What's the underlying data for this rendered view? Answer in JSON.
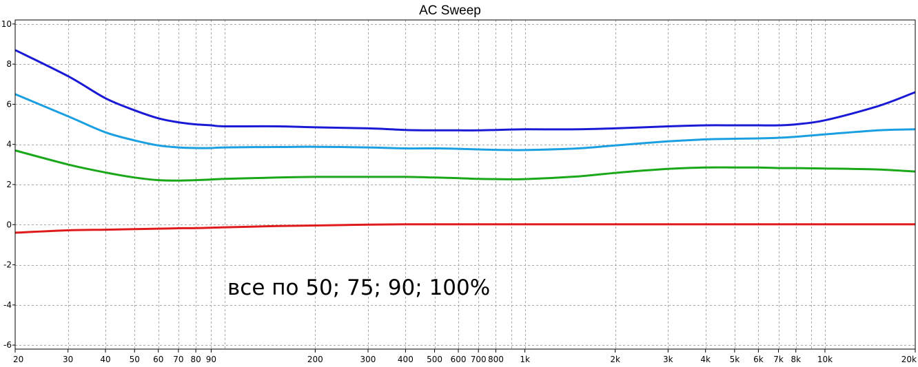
{
  "chart_data": {
    "type": "line",
    "title": "AC Sweep",
    "annotation": "все по 50; 75; 90; 100%",
    "x_scale": "log",
    "xlim": [
      20,
      20000
    ],
    "ylim": [
      -6.2,
      10.2
    ],
    "grid": true,
    "x_tick_labels": [
      {
        "value": 20,
        "label": "20"
      },
      {
        "value": 30,
        "label": "30"
      },
      {
        "value": 40,
        "label": "40"
      },
      {
        "value": 50,
        "label": "50"
      },
      {
        "value": 60,
        "label": "60"
      },
      {
        "value": 70,
        "label": "70"
      },
      {
        "value": 80,
        "label": "80"
      },
      {
        "value": 90,
        "label": "90"
      },
      {
        "value": 200,
        "label": "200"
      },
      {
        "value": 300,
        "label": "300"
      },
      {
        "value": 400,
        "label": "400"
      },
      {
        "value": 500,
        "label": "500"
      },
      {
        "value": 600,
        "label": "600"
      },
      {
        "value": 700,
        "label": "700"
      },
      {
        "value": 800,
        "label": "800"
      },
      {
        "value": 1000,
        "label": "1k"
      },
      {
        "value": 2000,
        "label": "2k"
      },
      {
        "value": 3000,
        "label": "3k"
      },
      {
        "value": 4000,
        "label": "4k"
      },
      {
        "value": 5000,
        "label": "5k"
      },
      {
        "value": 6000,
        "label": "6k"
      },
      {
        "value": 7000,
        "label": "7k"
      },
      {
        "value": 8000,
        "label": "8k"
      },
      {
        "value": 10000,
        "label": "10k"
      },
      {
        "value": 20000,
        "label": "20k"
      }
    ],
    "y_tick_labels": [
      {
        "value": 10,
        "label": "10"
      },
      {
        "value": 8,
        "label": "8"
      },
      {
        "value": 6,
        "label": "6"
      },
      {
        "value": 4,
        "label": "4"
      },
      {
        "value": 2,
        "label": "2"
      },
      {
        "value": 0,
        "label": "0"
      },
      {
        "value": -2,
        "label": "-2"
      },
      {
        "value": -4,
        "label": "-4"
      },
      {
        "value": -6,
        "label": "-6"
      }
    ],
    "x": [
      20,
      30,
      40,
      50,
      60,
      70,
      80,
      90,
      100,
      150,
      200,
      300,
      400,
      500,
      600,
      700,
      800,
      1000,
      1500,
      2000,
      3000,
      4000,
      5000,
      6000,
      7000,
      8000,
      10000,
      15000,
      20000
    ],
    "series": [
      {
        "color": "#1a1ad6",
        "values": [
          8.7,
          7.4,
          6.3,
          5.7,
          5.3,
          5.1,
          5.0,
          4.95,
          4.9,
          4.9,
          4.85,
          4.8,
          4.72,
          4.7,
          4.7,
          4.7,
          4.72,
          4.75,
          4.75,
          4.8,
          4.9,
          4.95,
          4.95,
          4.95,
          4.95,
          5.0,
          5.2,
          5.9,
          6.6
        ]
      },
      {
        "color": "#1aa0e0",
        "values": [
          6.5,
          5.4,
          4.6,
          4.2,
          3.95,
          3.85,
          3.82,
          3.82,
          3.85,
          3.87,
          3.88,
          3.85,
          3.8,
          3.8,
          3.78,
          3.75,
          3.73,
          3.72,
          3.8,
          3.95,
          4.15,
          4.25,
          4.28,
          4.3,
          4.33,
          4.38,
          4.5,
          4.7,
          4.75
        ]
      },
      {
        "color": "#1aa81a",
        "values": [
          3.7,
          3.0,
          2.6,
          2.35,
          2.22,
          2.2,
          2.22,
          2.25,
          2.28,
          2.35,
          2.38,
          2.38,
          2.38,
          2.35,
          2.32,
          2.28,
          2.27,
          2.27,
          2.4,
          2.58,
          2.78,
          2.85,
          2.85,
          2.85,
          2.82,
          2.82,
          2.8,
          2.75,
          2.65
        ]
      },
      {
        "color": "#e01a1a",
        "values": [
          -0.4,
          -0.28,
          -0.25,
          -0.22,
          -0.2,
          -0.18,
          -0.17,
          -0.15,
          -0.13,
          -0.07,
          -0.04,
          0.0,
          0.02,
          0.02,
          0.02,
          0.02,
          0.02,
          0.02,
          0.02,
          0.02,
          0.02,
          0.02,
          0.02,
          0.02,
          0.02,
          0.02,
          0.02,
          0.02,
          0.02
        ]
      }
    ]
  }
}
